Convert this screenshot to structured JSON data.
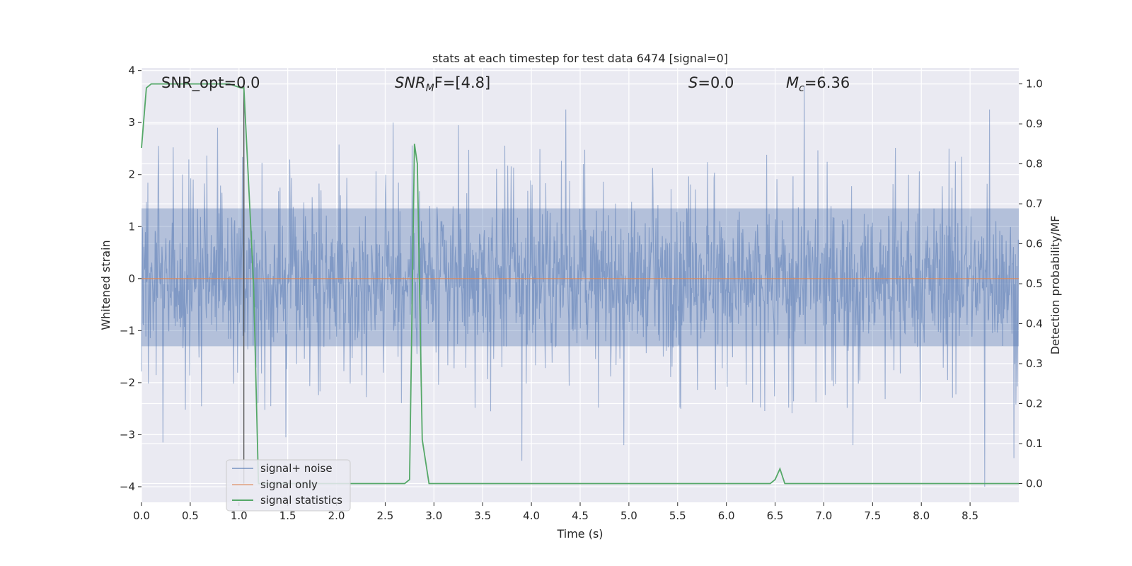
{
  "chart_data": {
    "type": "line",
    "title": "stats at each timestep for test data 6474 [signal=0]",
    "xlabel": "Time (s)",
    "ylabel": "Whitened strain",
    "y2label": "Detection probability/MF",
    "xlim": [
      0,
      9.0
    ],
    "ylim": [
      -4.3,
      4.05
    ],
    "y2lim": [
      -0.047,
      1.04
    ],
    "x_ticks": [
      "0.0",
      "0.5",
      "1.0",
      "1.5",
      "2.0",
      "2.5",
      "3.0",
      "3.5",
      "4.0",
      "4.5",
      "5.0",
      "5.5",
      "6.0",
      "6.5",
      "7.0",
      "7.5",
      "8.0",
      "8.5"
    ],
    "y_ticks": [
      "−4",
      "−3",
      "−2",
      "−1",
      "0",
      "1",
      "2",
      "3",
      "4"
    ],
    "y2_ticks": [
      "0.0",
      "0.1",
      "0.2",
      "0.3",
      "0.4",
      "0.5",
      "0.6",
      "0.7",
      "0.8",
      "0.9",
      "1.0"
    ],
    "grid": true,
    "legend_position": "lower-left",
    "annotations": {
      "snr_opt": "SNR_opt=0.0",
      "snr_mf_main": "SNR",
      "snr_mf_sub": "M",
      "snr_mf_tail": "F=[4.8]",
      "s_sym": "S",
      "s_val": "=0.0",
      "mc_sym": "M",
      "mc_sub": "c",
      "mc_val": "=6.36"
    },
    "series": [
      {
        "name": "signal+ noise",
        "color": "#4c72b0",
        "description_range": [
          -3.6,
          3.7
        ],
        "spikes": [
          {
            "x": 0.22,
            "y": -3.15
          },
          {
            "x": 0.78,
            "y": 2.9
          },
          {
            "x": 1.05,
            "y": 3.7
          },
          {
            "x": 1.48,
            "y": -3.05
          },
          {
            "x": 2.58,
            "y": 3.0
          },
          {
            "x": 3.25,
            "y": 2.95
          },
          {
            "x": 3.9,
            "y": -3.5
          },
          {
            "x": 4.35,
            "y": 3.25
          },
          {
            "x": 4.95,
            "y": -3.2
          },
          {
            "x": 6.8,
            "y": 3.7
          },
          {
            "x": 7.3,
            "y": -3.2
          },
          {
            "x": 8.65,
            "y": -4.0
          },
          {
            "x": 8.7,
            "y": 3.25
          },
          {
            "x": 8.95,
            "y": -3.45
          }
        ]
      },
      {
        "name": "signal only",
        "color": "#dd8452",
        "x": [
          0,
          9.0
        ],
        "y": [
          0,
          0
        ]
      },
      {
        "name": "signal statistics",
        "color": "#55a868",
        "axis": "right",
        "x": [
          0,
          0.05,
          0.1,
          0.9,
          1.02,
          1.05,
          1.15,
          1.2,
          1.3,
          1.5,
          2.7,
          2.75,
          2.8,
          2.83,
          2.88,
          2.95,
          3.5,
          6.45,
          6.5,
          6.55,
          6.6,
          6.8,
          9.0
        ],
        "y": [
          0.84,
          0.99,
          1.0,
          1.0,
          0.99,
          0.99,
          0.5,
          0.0,
          0.0,
          0.0,
          0.0,
          0.01,
          0.85,
          0.8,
          0.11,
          0.0,
          0.0,
          0.0,
          0.01,
          0.037,
          0.0,
          0.0,
          0.0
        ]
      }
    ],
    "marker_line_x": 1.05
  }
}
